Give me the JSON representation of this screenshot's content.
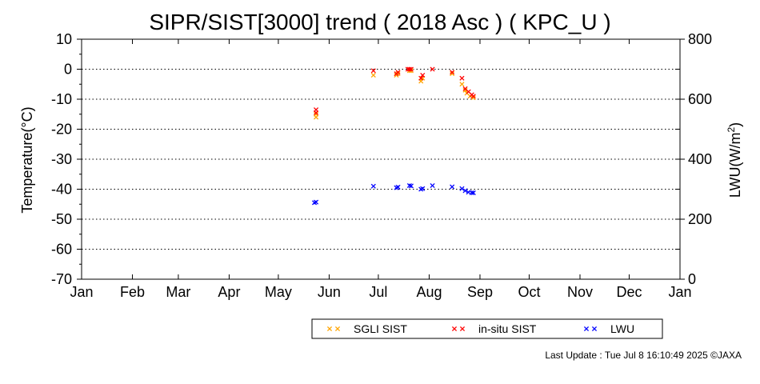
{
  "chart_data": {
    "type": "scatter",
    "title": "SIPR/SIST[3000] trend ( 2018 Asc ) ( KPC_U )",
    "ylabel": "Temperature(°C)",
    "y2label_main": "LWU(W/m",
    "y2label_sup": "2",
    "y2label_end": ")",
    "ylim": [
      -70,
      10
    ],
    "y2lim": [
      0,
      800
    ],
    "yticks": [
      "10",
      "0",
      "-10",
      "-20",
      "-30",
      "-40",
      "-50",
      "-60",
      "-70"
    ],
    "y2ticks": [
      "800",
      "600",
      "400",
      "200",
      "0"
    ],
    "xticks": [
      "Jan",
      "Feb",
      "Mar",
      "Apr",
      "May",
      "Jun",
      "Jul",
      "Aug",
      "Sep",
      "Oct",
      "Nov",
      "Dec",
      "Jan"
    ],
    "grid": "horizontal dotted",
    "series": [
      {
        "name": "SGLI SIST",
        "color": "#ffa500",
        "axis": "left",
        "points": [
          [
            "2018-05-24",
            -16
          ],
          [
            "2018-05-24",
            -15
          ],
          [
            "2018-06-28",
            -2
          ],
          [
            "2018-07-12",
            -2
          ],
          [
            "2018-07-13",
            -1.5
          ],
          [
            "2018-07-20",
            -0.5
          ],
          [
            "2018-07-21",
            -0.5
          ],
          [
            "2018-07-27",
            -4
          ],
          [
            "2018-07-28",
            -3
          ],
          [
            "2018-08-15",
            -1.5
          ],
          [
            "2018-08-21",
            -5
          ],
          [
            "2018-08-23",
            -7
          ],
          [
            "2018-08-24",
            -8
          ],
          [
            "2018-08-26",
            -9
          ],
          [
            "2018-08-28",
            -9.5
          ]
        ]
      },
      {
        "name": "in-situ SIST",
        "color": "#ff0000",
        "axis": "left",
        "points": [
          [
            "2018-05-24",
            -14.5
          ],
          [
            "2018-05-24",
            -13.5
          ],
          [
            "2018-06-28",
            -0.5
          ],
          [
            "2018-07-12",
            -1.5
          ],
          [
            "2018-07-13",
            -1
          ],
          [
            "2018-07-19",
            0
          ],
          [
            "2018-07-20",
            0
          ],
          [
            "2018-07-21",
            0
          ],
          [
            "2018-07-27",
            -3
          ],
          [
            "2018-07-28",
            -2
          ],
          [
            "2018-08-03",
            0
          ],
          [
            "2018-08-15",
            -1
          ],
          [
            "2018-08-21",
            -3
          ],
          [
            "2018-08-23",
            -6.5
          ],
          [
            "2018-08-25",
            -7.5
          ],
          [
            "2018-08-27",
            -8.5
          ],
          [
            "2018-08-28",
            -9
          ]
        ]
      },
      {
        "name": "LWU",
        "color": "#0000ff",
        "axis": "right",
        "points": [
          [
            "2018-05-23",
            255
          ],
          [
            "2018-05-24",
            257
          ],
          [
            "2018-06-28",
            310
          ],
          [
            "2018-07-12",
            305
          ],
          [
            "2018-07-13",
            307
          ],
          [
            "2018-07-20",
            312
          ],
          [
            "2018-07-21",
            311
          ],
          [
            "2018-07-27",
            300
          ],
          [
            "2018-07-28",
            302
          ],
          [
            "2018-08-03",
            312
          ],
          [
            "2018-08-15",
            308
          ],
          [
            "2018-08-21",
            302
          ],
          [
            "2018-08-23",
            295
          ],
          [
            "2018-08-25",
            290
          ],
          [
            "2018-08-27",
            288
          ],
          [
            "2018-08-28",
            288
          ]
        ]
      }
    ],
    "legend_placement": "bottom"
  },
  "footer": {
    "last_update": "Last Update : Tue Jul  8 16:10:49 2025  ©JAXA"
  }
}
